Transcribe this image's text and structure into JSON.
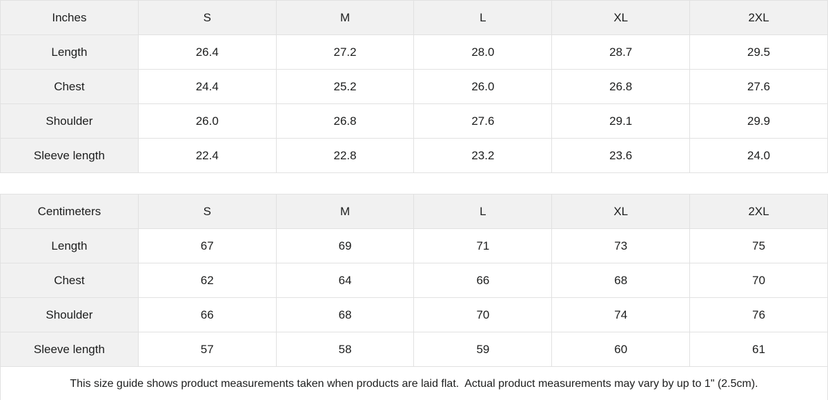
{
  "colors": {
    "header_bg": "#f1f1f1",
    "border": "#e1e1e1",
    "text": "#1c1d1d",
    "background": "#ffffff"
  },
  "chart_data": {
    "type": "table",
    "tables": [
      {
        "unit": "Inches",
        "header": [
          "Inches",
          "S",
          "M",
          "L",
          "XL",
          "2XL"
        ],
        "rows": [
          {
            "label": "Length",
            "values": [
              "26.4",
              "27.2",
              "28.0",
              "28.7",
              "29.5"
            ]
          },
          {
            "label": "Chest",
            "values": [
              "24.4",
              "25.2",
              "26.0",
              "26.8",
              "27.6"
            ]
          },
          {
            "label": "Shoulder",
            "values": [
              "26.0",
              "26.8",
              "27.6",
              "29.1",
              "29.9"
            ]
          },
          {
            "label": "Sleeve length",
            "values": [
              "22.4",
              "22.8",
              "23.2",
              "23.6",
              "24.0"
            ]
          }
        ]
      },
      {
        "unit": "Centimeters",
        "header": [
          "Centimeters",
          "S",
          "M",
          "L",
          "XL",
          "2XL"
        ],
        "rows": [
          {
            "label": "Length",
            "values": [
              "67",
              "69",
              "71",
              "73",
              "75"
            ]
          },
          {
            "label": "Chest",
            "values": [
              "62",
              "64",
              "66",
              "68",
              "70"
            ]
          },
          {
            "label": "Shoulder",
            "values": [
              "66",
              "68",
              "70",
              "74",
              "76"
            ]
          },
          {
            "label": "Sleeve length",
            "values": [
              "57",
              "58",
              "59",
              "60",
              "61"
            ]
          }
        ]
      }
    ]
  },
  "footer": {
    "note": "This size guide shows product measurements taken when products are laid flat.  Actual product measurements may vary by up to 1\" (2.5cm)."
  }
}
